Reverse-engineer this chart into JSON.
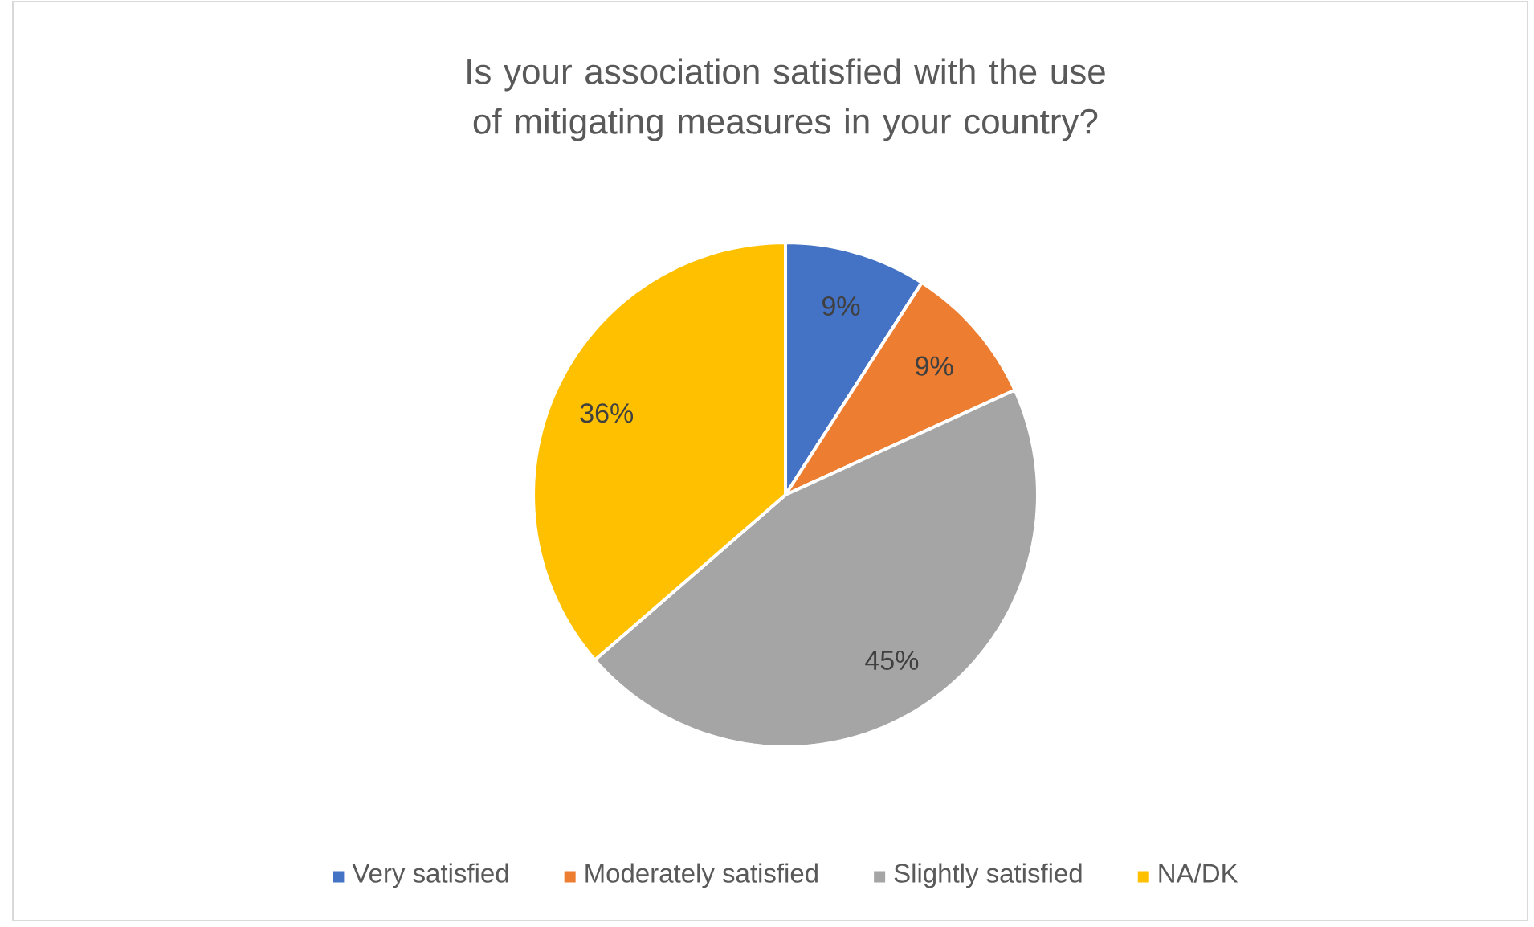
{
  "chart_data": {
    "type": "pie",
    "title": "Is your association satisfied with the use of mitigating measures in your country?",
    "categories": [
      "Very satisfied",
      "Moderately satisfied",
      "Slightly satisfied",
      "NA/DK"
    ],
    "values": [
      9,
      9,
      45,
      36
    ],
    "value_labels": [
      "9%",
      "9%",
      "45%",
      "36%"
    ],
    "colors": [
      "#4472c4",
      "#ed7d31",
      "#a5a5a5",
      "#ffc000"
    ],
    "legend": "bottom"
  }
}
